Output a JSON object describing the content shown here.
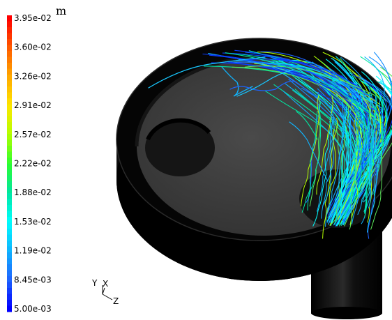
{
  "colorbar": {
    "unit": "m",
    "ticks": [
      "3.95e-02",
      "3.60e-02",
      "3.26e-02",
      "2.91e-02",
      "2.57e-02",
      "2.22e-02",
      "1.88e-02",
      "1.53e-02",
      "1.19e-02",
      "8.45e-03",
      "5.00e-03"
    ],
    "colors": [
      "#ff0000",
      "#ff5a00",
      "#ffa800",
      "#ffe600",
      "#b4ff00",
      "#2dff2d",
      "#00e6a0",
      "#00ffff",
      "#0fb4ff",
      "#1e64ff",
      "#0000ff"
    ]
  },
  "axes_triad": {
    "y": "Y",
    "x": "X",
    "z": "Z"
  },
  "colors": {
    "body_dark": "#050505",
    "top_face": "#404040",
    "rim": "#1e1e1e",
    "hole": "#151515"
  }
}
